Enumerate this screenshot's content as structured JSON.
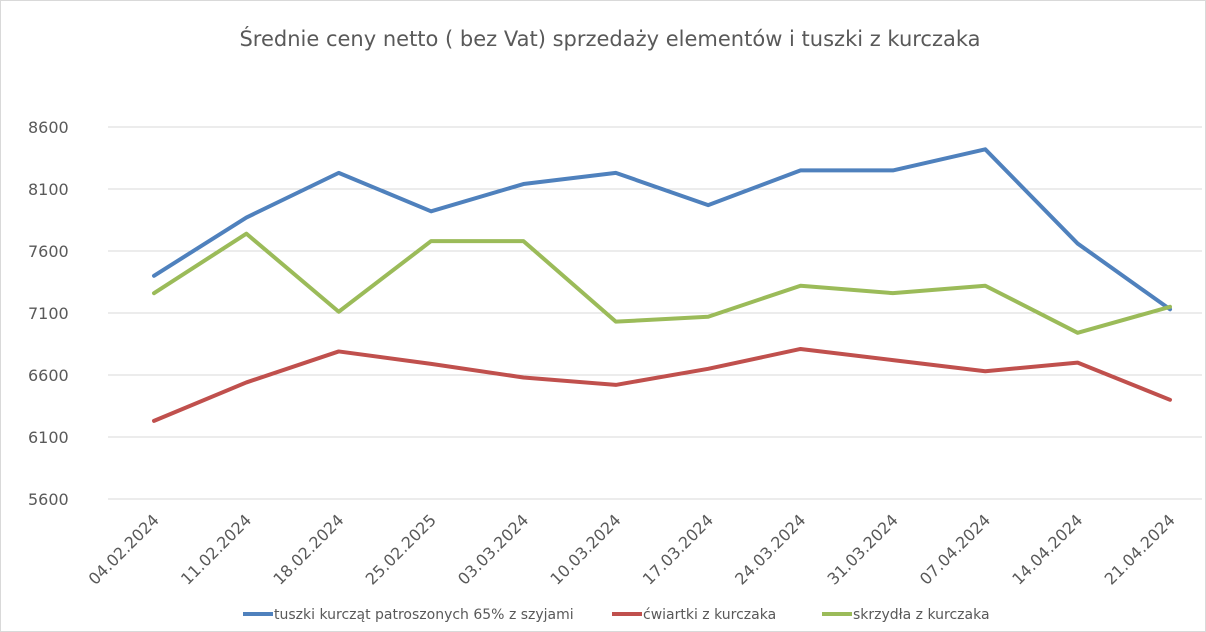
{
  "chart_data": {
    "type": "line",
    "title": "Średnie ceny netto ( bez Vat) sprzedaży elementów i tuszki z kurczaka",
    "categories": [
      "04.02.2024",
      "11.02.2024",
      "18.02.2024",
      "25.02.2025",
      "03.03.2024",
      "10.03.2024",
      "17.03.2024",
      "24.03.2024",
      "31.03.2024",
      "07.04.2024",
      "14.04.2024",
      "21.04.2024"
    ],
    "series": [
      {
        "name": "tuszki kurcząt patroszonych 65% z szyjami",
        "color": "#4f81bd",
        "values": [
          7400,
          7870,
          8230,
          7920,
          8140,
          8230,
          7970,
          8250,
          8250,
          8420,
          7660,
          7130
        ]
      },
      {
        "name": "ćwiartki z kurczaka",
        "color": "#c0504d",
        "values": [
          6230,
          6540,
          6790,
          6690,
          6580,
          6520,
          6650,
          6810,
          6720,
          6630,
          6700,
          6400
        ]
      },
      {
        "name": "skrzydła z kurczaka",
        "color": "#9bbb59",
        "values": [
          7260,
          7740,
          7110,
          7680,
          7680,
          7030,
          7070,
          7320,
          7260,
          7320,
          6940,
          7150
        ]
      }
    ],
    "ylim": [
      5600,
      8600
    ],
    "yticks": [
      5600,
      6100,
      6600,
      7100,
      7600,
      8100,
      8600
    ],
    "grid": true,
    "legend": "bottom"
  }
}
